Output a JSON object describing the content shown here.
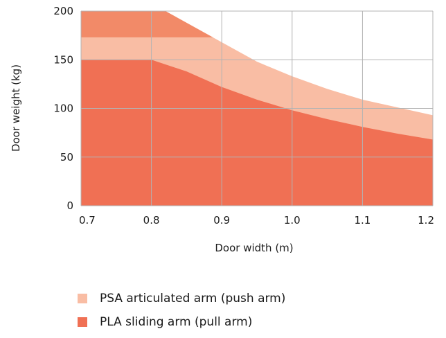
{
  "chart_data": {
    "type": "area",
    "xlabel": "Door width (m)",
    "ylabel": "Door weight (kg)",
    "xlim": [
      0.7,
      1.2
    ],
    "ylim": [
      0,
      200
    ],
    "x_ticks": [
      "0.7",
      "0.8",
      "0.9",
      "1.0",
      "1.1",
      "1.2"
    ],
    "y_ticks": [
      "0",
      "50",
      "100",
      "150",
      "200"
    ],
    "grid": true,
    "legend_position": "bottom",
    "series": [
      {
        "name": "PSA articulated arm (push arm)",
        "color": "#f9bda4",
        "x": [
          0.7,
          0.78,
          0.8,
          0.82,
          0.85,
          0.9,
          0.95,
          1.0,
          1.05,
          1.1,
          1.15,
          1.2
        ],
        "y": [
          200,
          200,
          200,
          200,
          188,
          168,
          148,
          133,
          120,
          109,
          101,
          93
        ]
      },
      {
        "name": "PLA sliding arm (pull arm)",
        "color": "#f07054",
        "x": [
          0.7,
          0.75,
          0.8,
          0.85,
          0.9,
          0.95,
          1.0,
          1.05,
          1.1,
          1.15,
          1.2
        ],
        "y": [
          150,
          150,
          150,
          138,
          122,
          109,
          98,
          89,
          81,
          74,
          68
        ]
      }
    ],
    "overlap_color": "#f28a68",
    "overlap_band": {
      "y_from": 173,
      "y_to": 200,
      "x_to": 0.82
    }
  },
  "legend": [
    {
      "label": "PSA articulated arm (push arm)",
      "color": "#f9bda4"
    },
    {
      "label": "PLA sliding arm (pull arm)",
      "color": "#f07054"
    }
  ]
}
